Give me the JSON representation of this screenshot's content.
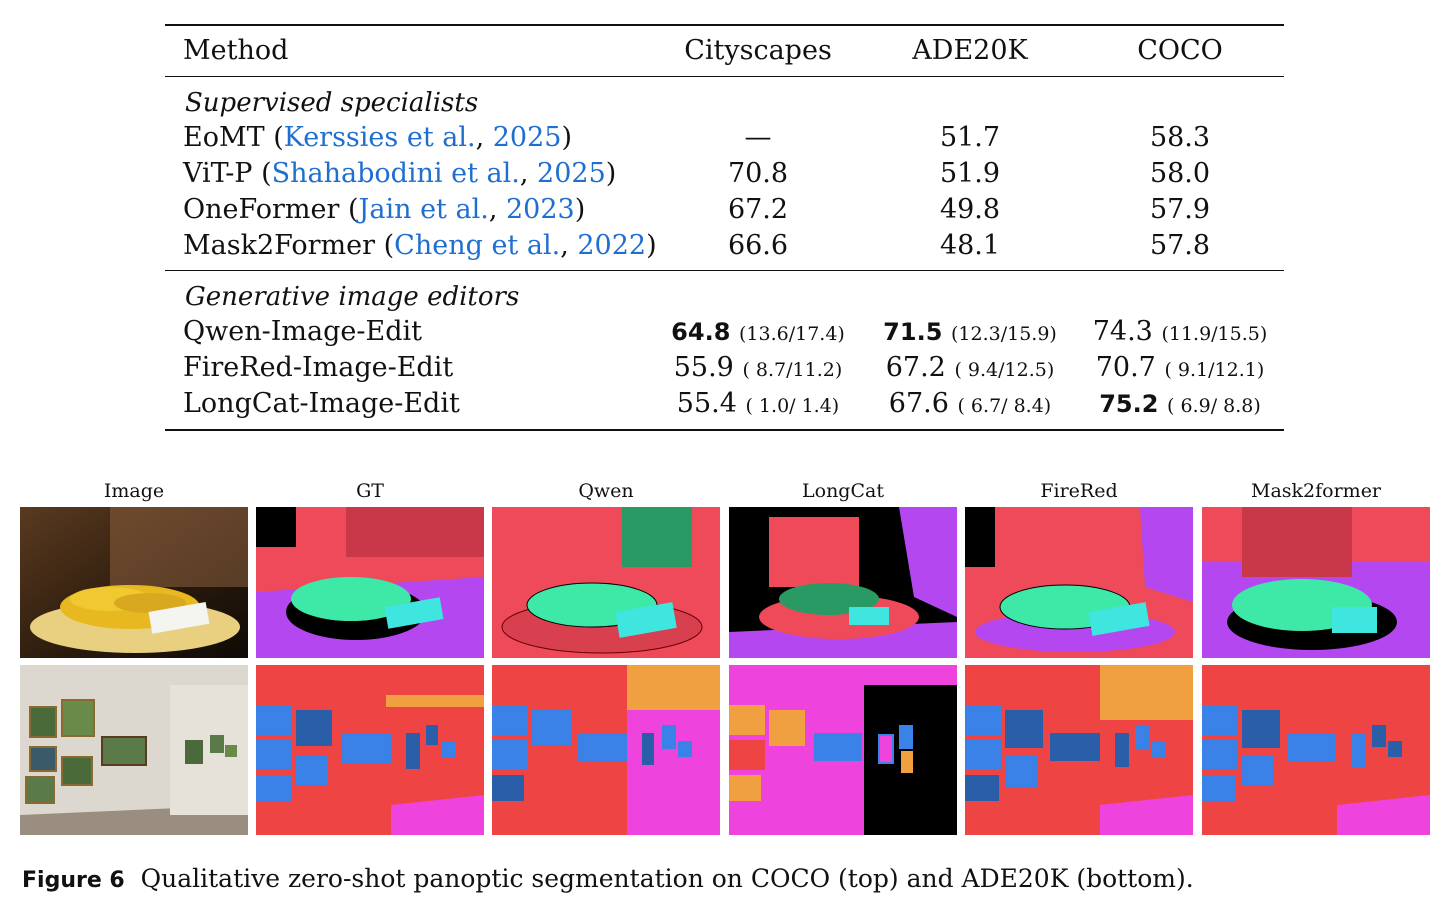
{
  "table": {
    "headers": [
      "Method",
      "Cityscapes",
      "ADE20K",
      "COCO"
    ],
    "groups": [
      {
        "title": "Supervised specialists",
        "rows": [
          {
            "method": "EoMT",
            "cite_author": "Kerssies et al.",
            "cite_year": "2025",
            "cityscapes": "—",
            "ade20k": "51.7",
            "coco": "58.3"
          },
          {
            "method": "ViT-P",
            "cite_author": "Shahabodini et al.",
            "cite_year": "2025",
            "cityscapes": "70.8",
            "ade20k": "51.9",
            "coco": "58.0"
          },
          {
            "method": "OneFormer",
            "cite_author": "Jain et al.",
            "cite_year": "2023",
            "cityscapes": "67.2",
            "ade20k": "49.8",
            "coco": "57.9"
          },
          {
            "method": "Mask2Former",
            "cite_author": "Cheng et al.",
            "cite_year": "2022",
            "cityscapes": "66.6",
            "ade20k": "48.1",
            "coco": "57.8"
          }
        ]
      },
      {
        "title": "Generative image editors",
        "rows": [
          {
            "method": "Qwen-Image-Edit",
            "cityscapes": "64.8",
            "cityscapes_sub": "(13.6/17.4)",
            "ade20k": "71.5",
            "ade20k_sub": "(12.3/15.9)",
            "coco": "74.3",
            "coco_sub": "(11.9/15.5)"
          },
          {
            "method": "FireRed-Image-Edit",
            "cityscapes": "55.9",
            "cityscapes_sub": "( 8.7/11.2)",
            "ade20k": "67.2",
            "ade20k_sub": "( 9.4/12.5)",
            "coco": "70.7",
            "coco_sub": "( 9.1/12.1)"
          },
          {
            "method": "LongCat-Image-Edit",
            "cityscapes": "55.4",
            "cityscapes_sub": "( 1.0/ 1.4)",
            "ade20k": "67.6",
            "ade20k_sub": "( 6.7/ 8.4)",
            "coco": "75.2",
            "coco_sub": "( 6.9/ 8.8)"
          }
        ]
      }
    ]
  },
  "figure": {
    "column_labels": [
      "Image",
      "GT",
      "Qwen",
      "LongCat",
      "FireRed",
      "Mask2former"
    ],
    "caption_label": "Figure 6",
    "caption_text": "Qualitative zero-shot panoptic segmentation on COCO (top) and ADE20K (bottom).",
    "colors": {
      "salmon": "#ee4a5a",
      "green": "#3ee9a8",
      "darkgreen": "#2a9a64",
      "purple": "#b447f0",
      "cyan": "#3fe6e0",
      "red": "#ef4444",
      "blue": "#3b82e8",
      "darkblue": "#2b5ea8",
      "orange": "#f0a040",
      "magenta": "#ee44dd",
      "black": "#000000"
    }
  }
}
